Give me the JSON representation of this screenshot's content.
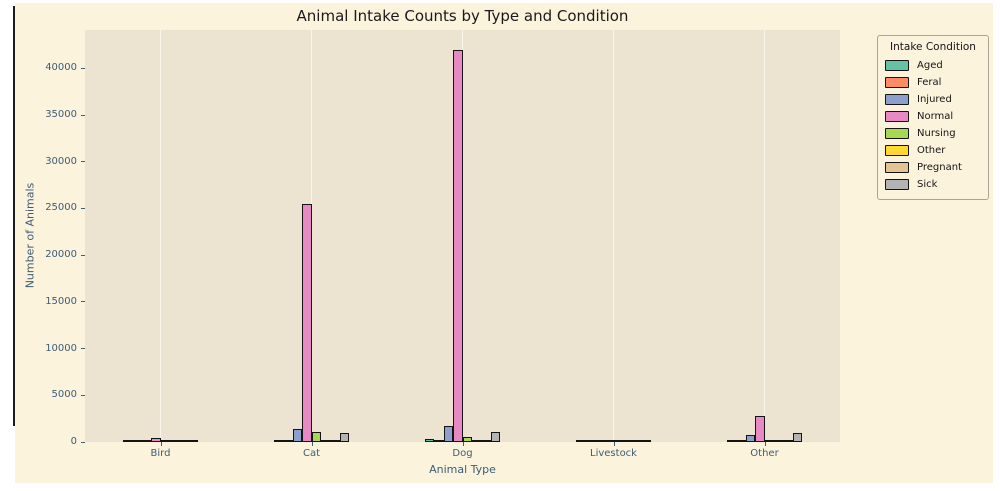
{
  "chart_data": {
    "type": "bar",
    "title": "Animal Intake Counts by Type and Condition",
    "xlabel": "Animal Type",
    "ylabel": "Number of Animals",
    "legend_title": "Intake Condition",
    "legend_position": "upper right, outside plot",
    "grid": "vertical white gridlines at category centers only",
    "categories": [
      "Bird",
      "Cat",
      "Dog",
      "Livestock",
      "Other"
    ],
    "series": [
      {
        "name": "Aged",
        "color": "#66c2a5",
        "values": [
          10,
          60,
          350,
          10,
          15
        ]
      },
      {
        "name": "Feral",
        "color": "#fc8d62",
        "values": [
          5,
          160,
          40,
          5,
          10
        ]
      },
      {
        "name": "Injured",
        "color": "#8da0cb",
        "values": [
          200,
          1400,
          1700,
          20,
          750
        ]
      },
      {
        "name": "Normal",
        "color": "#e78ac3",
        "values": [
          400,
          25500,
          42000,
          60,
          2800
        ]
      },
      {
        "name": "Nursing",
        "color": "#a6d854",
        "values": [
          10,
          1100,
          500,
          10,
          40
        ]
      },
      {
        "name": "Other",
        "color": "#ffd92f",
        "values": [
          5,
          40,
          60,
          5,
          15
        ]
      },
      {
        "name": "Pregnant",
        "color": "#e5c494",
        "values": [
          5,
          120,
          90,
          5,
          10
        ]
      },
      {
        "name": "Sick",
        "color": "#b3b3b3",
        "values": [
          60,
          1000,
          1050,
          30,
          1000
        ]
      }
    ],
    "yticks": [
      0,
      5000,
      10000,
      15000,
      20000,
      25000,
      30000,
      35000,
      40000
    ],
    "ylim": [
      0,
      44100
    ],
    "group_width_fraction": 0.5,
    "bar_edge_color": "#141414",
    "figure_background": "#fcf3dd",
    "plot_background": "#ece4d1",
    "tick_text_color": "#3e5c76"
  }
}
